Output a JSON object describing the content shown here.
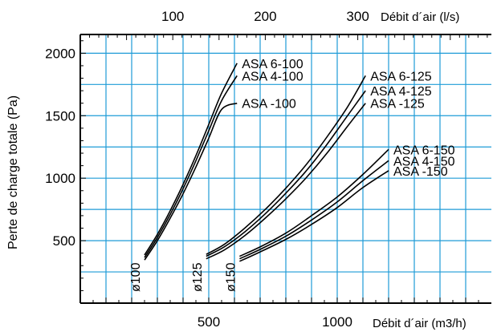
{
  "chart_data": {
    "type": "line",
    "title": "",
    "ylabel": "Perte de charge totale (Pa)",
    "xlabel": "Débit d´air (m3/h)",
    "top_axis_label": "Débit d´air (l/s)",
    "xlim": [
      0,
      1600
    ],
    "ylim": [
      0,
      2150
    ],
    "x_ticks": [
      500,
      1000
    ],
    "y_ticks": [
      500,
      1000,
      1500,
      2000
    ],
    "top_ticks_ls": [
      100,
      200,
      300
    ],
    "grid": true,
    "grid_color": "#1e9bd7",
    "line_color": "#000000",
    "diameter_labels": [
      "ø100",
      "ø125",
      "ø150"
    ],
    "series": [
      {
        "name": "ASA 6-100",
        "x": [
          250,
          300,
          350,
          400,
          450,
          500,
          550,
          610
        ],
        "y": [
          385,
          550,
          740,
          950,
          1180,
          1430,
          1680,
          1920
        ]
      },
      {
        "name": "ASA 4-100",
        "x": [
          250,
          300,
          350,
          400,
          450,
          500,
          550,
          610
        ],
        "y": [
          365,
          525,
          710,
          915,
          1140,
          1380,
          1620,
          1820
        ]
      },
      {
        "name": "ASA -100",
        "x": [
          250,
          300,
          350,
          400,
          450,
          500,
          550,
          610
        ],
        "y": [
          345,
          500,
          680,
          875,
          1090,
          1320,
          1550,
          1600
        ]
      },
      {
        "name": "ASA 6-125",
        "x": [
          490,
          560,
          640,
          720,
          800,
          880,
          960,
          1040,
          1110
        ],
        "y": [
          390,
          470,
          600,
          750,
          920,
          1110,
          1330,
          1570,
          1820
        ]
      },
      {
        "name": "ASA 4-125",
        "x": [
          490,
          560,
          640,
          720,
          800,
          880,
          960,
          1040,
          1110
        ],
        "y": [
          375,
          450,
          570,
          715,
          880,
          1060,
          1270,
          1500,
          1700
        ]
      },
      {
        "name": "ASA -125",
        "x": [
          490,
          560,
          640,
          720,
          800,
          880,
          960,
          1040,
          1110
        ],
        "y": [
          355,
          425,
          540,
          680,
          835,
          1005,
          1200,
          1415,
          1600
        ]
      },
      {
        "name": "ASA 6-150",
        "x": [
          620,
          700,
          800,
          900,
          1000,
          1100,
          1200
        ],
        "y": [
          375,
          450,
          560,
          700,
          850,
          1030,
          1230
        ]
      },
      {
        "name": "ASA 4-150",
        "x": [
          620,
          700,
          800,
          900,
          1000,
          1100,
          1200
        ],
        "y": [
          355,
          430,
          535,
          665,
          810,
          980,
          1140
        ]
      },
      {
        "name": "ASA -150",
        "x": [
          620,
          700,
          800,
          900,
          1000,
          1100,
          1200
        ],
        "y": [
          335,
          410,
          510,
          630,
          765,
          925,
          1060
        ]
      }
    ]
  }
}
